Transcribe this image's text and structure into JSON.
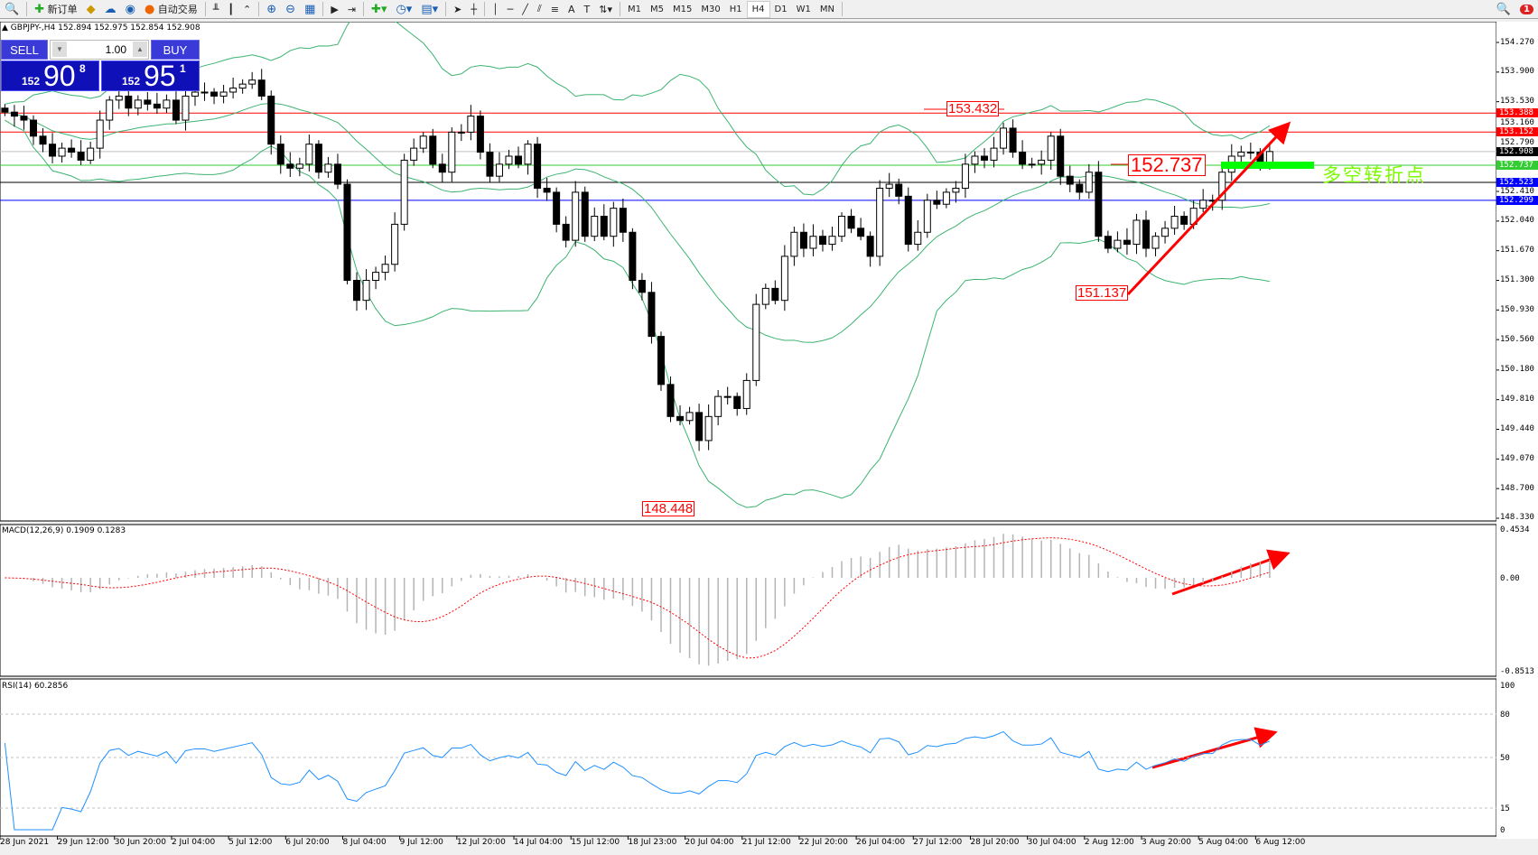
{
  "toolbar": {
    "new_order": "新订单",
    "auto_trading": "自动交易",
    "timeframes": [
      "M1",
      "M5",
      "M15",
      "M30",
      "H1",
      "H4",
      "D1",
      "W1",
      "MN"
    ],
    "active_timeframe": "H4",
    "alert_count": "1"
  },
  "chart_header": "GBPJPY-,H4  152.894 152.975 152.854 152.908",
  "ticket": {
    "sell_label": "SELL",
    "buy_label": "BUY",
    "lot": "1.00",
    "sell_big": "152",
    "sell_main": "90",
    "sell_sup": "8",
    "buy_big": "152",
    "buy_main": "95",
    "buy_sup": "1"
  },
  "price_axis": [
    "154.270",
    "153.900",
    "153.530",
    "153.160",
    "152.790",
    "152.410",
    "152.040",
    "151.670",
    "151.300",
    "150.930",
    "150.560",
    "150.180",
    "149.810",
    "149.440",
    "149.070",
    "148.700",
    "148.330"
  ],
  "price_levels": [
    {
      "value": "153.388",
      "color": "#ff0000"
    },
    {
      "value": "153.152",
      "color": "#ff0000"
    },
    {
      "value": "152.908",
      "color": "#000000",
      "line": "#c0c0c0"
    },
    {
      "value": "152.737",
      "color": "#33cc33"
    },
    {
      "value": "152.523",
      "color": "#0000ff",
      "line": "#000000"
    },
    {
      "value": "152.299",
      "color": "#0000ff"
    }
  ],
  "annotations": {
    "high": "153.432",
    "low": "148.448",
    "swing_low": "151.137",
    "pivot": "152.737",
    "pivot_text": "多空转折点"
  },
  "macd": {
    "label": "MACD(12,26,9) 0.1909 0.1283",
    "axis": [
      "0.4534",
      "0.00",
      "-0.8513"
    ]
  },
  "rsi": {
    "label": "RSI(14) 60.2856",
    "axis": [
      "100",
      "80",
      "50",
      "15",
      "0"
    ]
  },
  "dates": [
    "28 Jun 2021",
    "29 Jun 12:00",
    "30 Jun 20:00",
    "2 Jul 04:00",
    "5 Jul 12:00",
    "6 Jul 20:00",
    "8 Jul 04:00",
    "9 Jul 12:00",
    "12 Jul 20:00",
    "14 Jul 04:00",
    "15 Jul 12:00",
    "18 Jul 23:00",
    "20 Jul 04:00",
    "21 Jul 12:00",
    "22 Jul 20:00",
    "26 Jul 04:00",
    "27 Jul 12:00",
    "28 Jul 20:00",
    "30 Jul 04:00",
    "2 Aug 12:00",
    "3 Aug 20:00",
    "5 Aug 04:00",
    "6 Aug 12:00"
  ],
  "chart_data": {
    "type": "candlestick",
    "symbol": "GBPJPY-",
    "timeframe": "H4",
    "ylim": [
      148.33,
      154.27
    ],
    "indicators": [
      "Bollinger Bands",
      "MACD(12,26,9)",
      "RSI(14)"
    ],
    "closes": [
      153.4,
      153.35,
      153.3,
      153.1,
      153.0,
      152.85,
      152.95,
      152.9,
      152.8,
      152.95,
      153.3,
      153.55,
      153.6,
      153.45,
      153.55,
      153.5,
      153.45,
      153.55,
      153.3,
      153.6,
      153.65,
      153.65,
      153.6,
      153.65,
      153.7,
      153.75,
      153.8,
      153.6,
      153.0,
      152.75,
      152.7,
      152.75,
      153.0,
      152.65,
      152.75,
      152.5,
      151.3,
      151.05,
      151.3,
      151.4,
      151.5,
      152.0,
      152.8,
      152.95,
      153.1,
      152.75,
      152.65,
      153.15,
      153.15,
      153.35,
      152.9,
      152.6,
      152.75,
      152.85,
      152.75,
      153.0,
      152.45,
      152.4,
      152.0,
      151.8,
      152.4,
      151.85,
      152.1,
      151.85,
      152.2,
      151.9,
      151.3,
      151.15,
      150.6,
      150.0,
      149.6,
      149.55,
      149.65,
      149.3,
      149.6,
      149.85,
      149.85,
      149.7,
      150.05,
      151.0,
      151.2,
      151.05,
      151.6,
      151.9,
      151.7,
      151.85,
      151.75,
      151.85,
      152.1,
      151.95,
      151.85,
      151.6,
      152.45,
      152.5,
      152.35,
      151.75,
      151.9,
      152.3,
      152.25,
      152.4,
      152.45,
      152.75,
      152.85,
      152.8,
      152.95,
      153.2,
      152.9,
      152.75,
      152.75,
      152.8,
      153.1,
      152.6,
      152.5,
      152.4,
      152.65,
      151.85,
      151.7,
      151.8,
      151.75,
      152.05,
      151.7,
      151.85,
      151.95,
      152.1,
      152.0,
      152.2,
      152.3,
      152.3,
      152.65,
      152.85,
      152.9,
      152.9,
      152.75,
      152.908
    ]
  }
}
